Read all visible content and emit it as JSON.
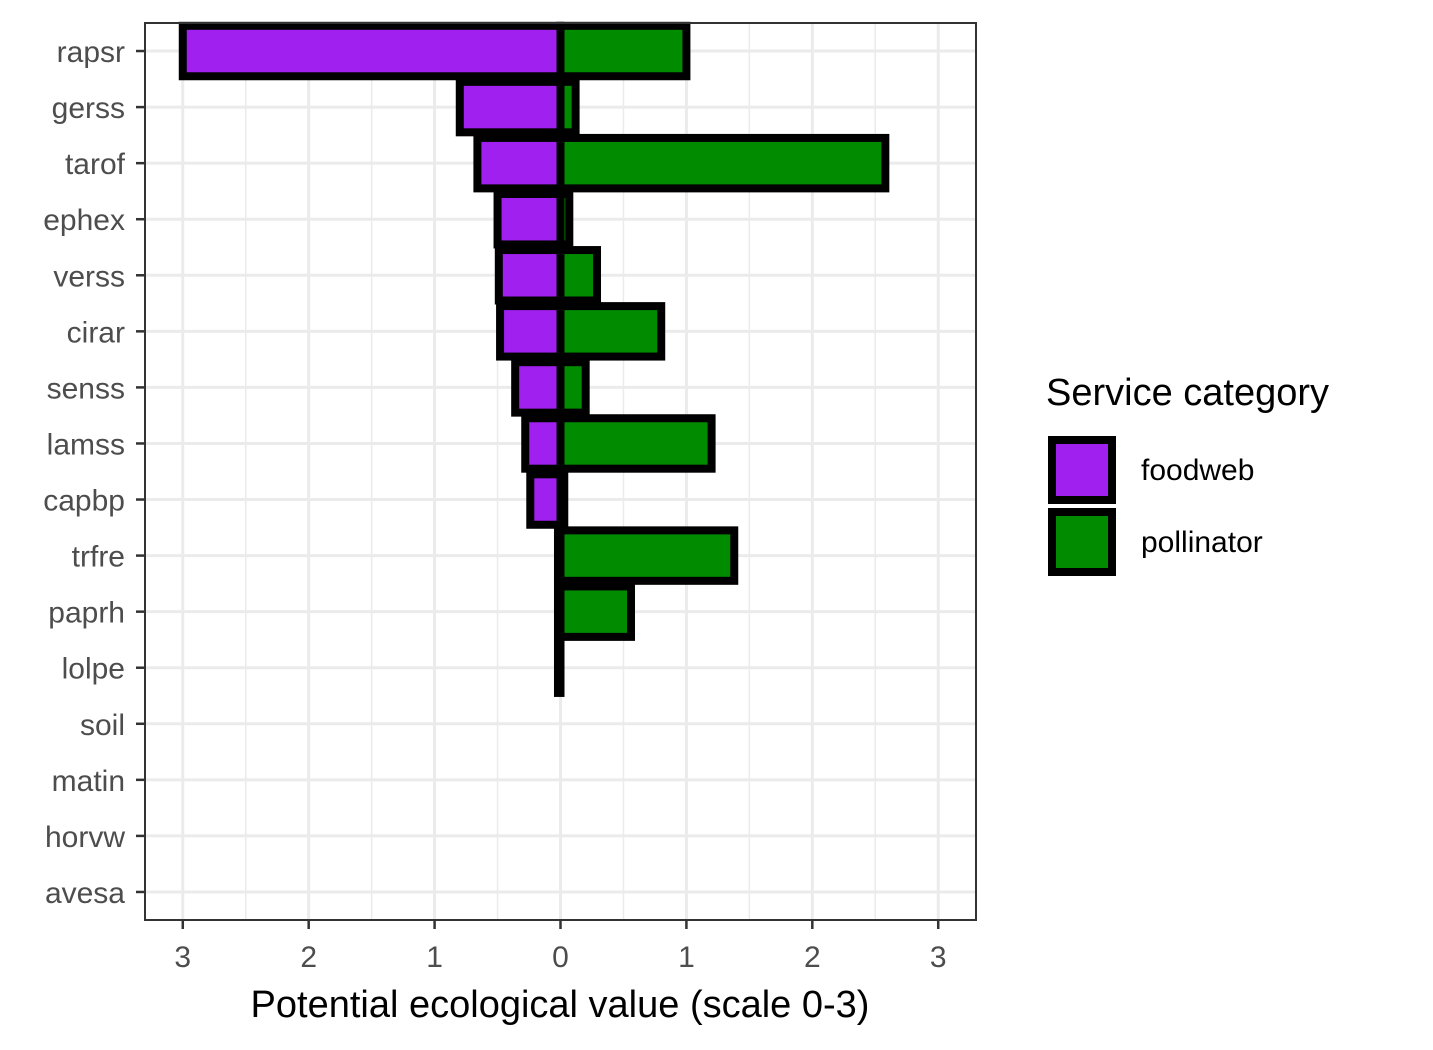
{
  "chart_data": {
    "type": "bar",
    "orientation": "horizontal-diverging",
    "categories": [
      "rapsr",
      "gerss",
      "tarof",
      "ephex",
      "verss",
      "cirar",
      "senss",
      "lamss",
      "capbp",
      "trfre",
      "paprh",
      "lolpe",
      "soil",
      "matin",
      "horvw",
      "avesa"
    ],
    "series": [
      {
        "name": "foodweb",
        "direction": "left",
        "color": "#A020F0",
        "values": [
          3.0,
          0.8,
          0.66,
          0.5,
          0.49,
          0.48,
          0.36,
          0.28,
          0.24,
          0.02,
          0.02,
          0.02,
          0,
          0,
          0,
          0
        ]
      },
      {
        "name": "pollinator",
        "direction": "right",
        "color": "#008B00",
        "values": [
          1.0,
          0.12,
          2.58,
          0.07,
          0.29,
          0.8,
          0.2,
          1.2,
          0.03,
          1.38,
          0.56,
          0.0,
          0,
          0,
          0,
          0
        ]
      }
    ],
    "xlabel": "Potential ecological value (scale 0-3)",
    "ylabel": "",
    "xlim": [
      -3.3,
      3.3
    ],
    "xticks": [
      -3,
      -2,
      -1,
      0,
      1,
      2,
      3
    ],
    "xtick_labels": [
      "3",
      "2",
      "1",
      "0",
      "1",
      "2",
      "3"
    ],
    "grid": true,
    "legend": {
      "title": "Service category",
      "placement": "right"
    },
    "bar_outline_color": "#000000"
  }
}
